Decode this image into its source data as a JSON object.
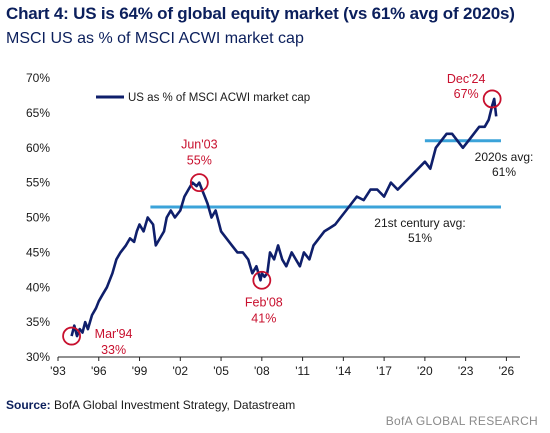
{
  "title": "Chart 4: US is 64% of global equity market (vs 61% avg of 2020s)",
  "subtitle": "MSCI US as % of MSCI ACWI market cap",
  "source_label": "Source:",
  "source_text": " BofA Global Investment Strategy, Datastream",
  "brand": "BofA GLOBAL RESEARCH",
  "colors": {
    "line": "#0f1f6b",
    "reference": "#3ba3d9",
    "highlight": "#c8102e",
    "text": "#1a1a1a"
  },
  "chart_data": {
    "type": "line",
    "title": "Chart 4: US is 64% of global equity market (vs 61% avg of 2020s)",
    "subtitle": "MSCI US as % of MSCI ACWI market cap",
    "ylim": [
      30,
      70
    ],
    "xlim": [
      1993,
      2027
    ],
    "y_ticks": [
      30,
      35,
      40,
      45,
      50,
      55,
      60,
      65,
      70
    ],
    "y_tick_labels": [
      "30%",
      "35%",
      "40%",
      "45%",
      "50%",
      "55%",
      "60%",
      "65%",
      "70%"
    ],
    "x_ticks": [
      1993,
      1996,
      1999,
      2002,
      2005,
      2008,
      2011,
      2014,
      2017,
      2020,
      2023,
      2026
    ],
    "x_tick_labels": [
      "'93",
      "'96",
      "'99",
      "'02",
      "'05",
      "'08",
      "'11",
      "'14",
      "'17",
      "'20",
      "'23",
      "'26"
    ],
    "legend": {
      "entries": [
        "US as % of MSCI ACWI market cap"
      ],
      "position": "top-left"
    },
    "grid": false,
    "series": [
      {
        "name": "US as % of MSCI ACWI market cap",
        "x": [
          1994.0,
          1994.2,
          1994.4,
          1994.6,
          1994.8,
          1995.0,
          1995.2,
          1995.5,
          1995.8,
          1996.0,
          1996.3,
          1996.6,
          1997.0,
          1997.3,
          1997.6,
          1998.0,
          1998.3,
          1998.6,
          1998.8,
          1999.0,
          1999.3,
          1999.6,
          1999.8,
          2000.0,
          2000.2,
          2000.5,
          2000.8,
          2001.0,
          2001.3,
          2001.6,
          2002.0,
          2002.3,
          2002.6,
          2002.9,
          2003.2,
          2003.4,
          2003.6,
          2003.8,
          2004.0,
          2004.3,
          2004.6,
          2005.0,
          2005.4,
          2005.8,
          2006.2,
          2006.6,
          2007.0,
          2007.3,
          2007.6,
          2007.9,
          2008.0,
          2008.2,
          2008.4,
          2008.6,
          2008.9,
          2009.2,
          2009.5,
          2009.8,
          2010.2,
          2010.5,
          2010.8,
          2011.1,
          2011.5,
          2011.8,
          2012.2,
          2012.6,
          2013.0,
          2013.4,
          2013.8,
          2014.2,
          2014.6,
          2015.0,
          2015.5,
          2016.0,
          2016.5,
          2017.0,
          2017.5,
          2018.0,
          2018.5,
          2019.0,
          2019.5,
          2020.0,
          2020.4,
          2020.8,
          2021.2,
          2021.6,
          2022.0,
          2022.4,
          2022.8,
          2023.2,
          2023.6,
          2024.0,
          2024.4,
          2024.7,
          2024.95,
          2025.1,
          2025.25
        ],
        "values": [
          33,
          34.5,
          33,
          34,
          33.5,
          35,
          34,
          36,
          37,
          38,
          39,
          40,
          42,
          44,
          45,
          46,
          47,
          46.5,
          48,
          49,
          48,
          50,
          49.5,
          49,
          46,
          47,
          48,
          50,
          51,
          50,
          51,
          53,
          54,
          55,
          54.5,
          55,
          54,
          53,
          52,
          50,
          51,
          48,
          47,
          46,
          45,
          45,
          44,
          42,
          43,
          41,
          42,
          41.5,
          42,
          45,
          44,
          46,
          44,
          43,
          45,
          44,
          43,
          45,
          44,
          46,
          47,
          48,
          48.5,
          49,
          50,
          51,
          52,
          53,
          52.5,
          54,
          54,
          53,
          55,
          54,
          55,
          56,
          57,
          58,
          57,
          60,
          61,
          62,
          62,
          61,
          60,
          61,
          62,
          63,
          63,
          64,
          66,
          67,
          64.5
        ],
        "annotations": [
          {
            "x": 1994.0,
            "y": 33,
            "label": "Mar'94",
            "value": "33%"
          },
          {
            "x": 2003.4,
            "y": 55,
            "label": "Jun'03",
            "value": "55%"
          },
          {
            "x": 2008.0,
            "y": 41,
            "label": "Feb'08",
            "value": "41%"
          },
          {
            "x": 2024.95,
            "y": 67,
            "label": "Dec'24",
            "value": "67%"
          }
        ]
      }
    ],
    "reference_lines": [
      {
        "label": "21st century avg:",
        "value_label": "51%",
        "y": 51.5,
        "x_start": 1999.8,
        "x_end": 2025.6
      },
      {
        "label": "2020s avg:",
        "value_label": "61%",
        "y": 61,
        "x_start": 2020.0,
        "x_end": 2025.6
      }
    ]
  }
}
